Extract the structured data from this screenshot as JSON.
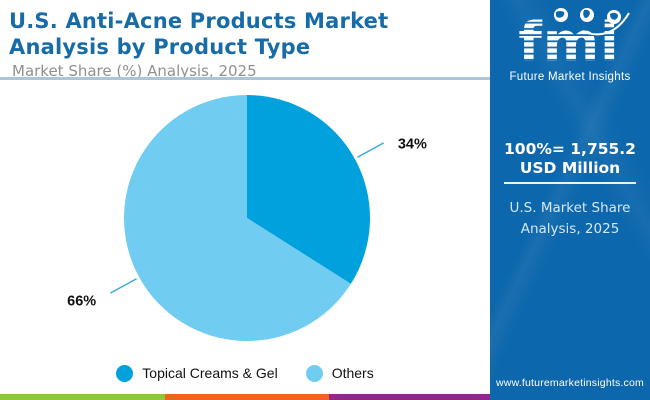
{
  "header": {
    "title_line1": "U.S. Anti-Acne Products Market",
    "title_line2": "Analysis by Product Type",
    "subtitle": "Market Share (%) Analysis, 2025",
    "title_color": "#176ca8",
    "subtitle_color": "#8f9090",
    "divider_color": "#a9c6da"
  },
  "chart_data": {
    "type": "pie",
    "title": "U.S. Anti-Acne Products Market Analysis by Product Type",
    "subtitle": "Market Share (%) Analysis, 2025",
    "categories": [
      "Topical Creams & Gel",
      "Others"
    ],
    "values": [
      34,
      66
    ],
    "unit": "%",
    "colors": [
      "#00a1dc",
      "#70cdf1"
    ],
    "label_color": "#111111",
    "leader_line_color": "#3aa8e0",
    "start_angle_deg": 0,
    "direction": "clockwise",
    "legend_position": "bottom"
  },
  "sidebar": {
    "bg_color": "#0d67ac",
    "brand": {
      "logo_text": "fmi",
      "brand_name": "Future Market Insights",
      "logo_icons": [
        "globe-americas-icon",
        "globe-europe-africa-icon",
        "globe-asia-icon"
      ]
    },
    "total_label": "100%= 1,755.2 USD Million",
    "note_line1": "U.S. Market Share",
    "note_line2": "Analysis, 2025",
    "website": "www.futuremarketinsights.com"
  },
  "footer": {
    "stripe_colors": [
      "#8cc63e",
      "#f26322",
      "#93278f"
    ]
  }
}
